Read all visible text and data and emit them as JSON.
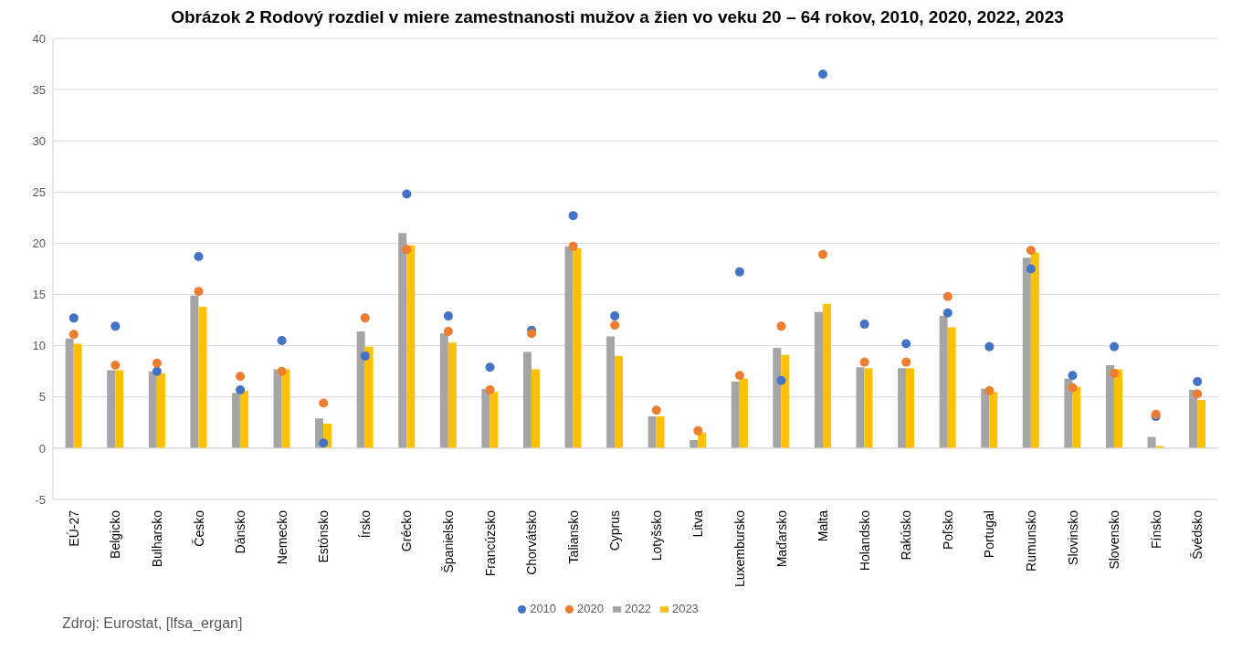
{
  "chart_data": {
    "type": "bar",
    "title": "Obrázok 2 Rodový rozdiel v miere zamestnanosti mužov a žien vo veku 20 – 64 rokov, 2010, 2020, 2022, 2023",
    "categories": [
      "EÚ-27",
      "Belgicko",
      "Bulharsko",
      "Česko",
      "Dánsko",
      "Nemecko",
      "Estónsko",
      "Írsko",
      "Grécko",
      "Španielsko",
      "Francúzsko",
      "Chorvátsko",
      "Taliansko",
      "Cyprus",
      "Lotyšsko",
      "Litva",
      "Luxembursko",
      "Maďarsko",
      "Malta",
      "Holandsko",
      "Rakúsko",
      "Poľsko",
      "Portugal",
      "Rumunsko",
      "Slovinsko",
      "Slovensko",
      "Fínsko",
      "Švédsko"
    ],
    "series": [
      {
        "name": "2022",
        "color": "#a5a5a5",
        "values": [
          10.7,
          7.6,
          7.5,
          14.9,
          5.4,
          7.7,
          2.9,
          11.4,
          21.0,
          11.2,
          5.8,
          9.4,
          19.7,
          10.9,
          3.1,
          0.8,
          6.5,
          9.8,
          13.3,
          7.9,
          7.8,
          12.9,
          5.8,
          18.6,
          6.8,
          8.1,
          1.1,
          5.7
        ]
      },
      {
        "name": "2023",
        "color": "#ffc000",
        "values": [
          10.2,
          7.6,
          7.3,
          13.8,
          5.6,
          7.7,
          2.4,
          9.9,
          19.8,
          10.3,
          5.5,
          7.7,
          19.5,
          9.0,
          3.1,
          1.5,
          6.8,
          9.1,
          14.1,
          7.8,
          7.8,
          11.8,
          5.5,
          19.1,
          6.0,
          7.7,
          0.2,
          4.7
        ]
      },
      {
        "name": "2010",
        "type": "scatter",
        "color": "#4472c4",
        "values": [
          12.7,
          11.9,
          7.5,
          18.7,
          5.7,
          10.5,
          0.5,
          9.0,
          24.8,
          12.9,
          7.9,
          11.5,
          22.7,
          12.9,
          null,
          null,
          17.2,
          6.6,
          36.5,
          12.1,
          10.2,
          13.2,
          9.9,
          17.5,
          7.1,
          9.9,
          3.1,
          6.5
        ]
      },
      {
        "name": "2020",
        "type": "scatter",
        "color": "#ed7d31",
        "values": [
          11.1,
          8.1,
          8.3,
          15.3,
          7.0,
          7.5,
          4.4,
          12.7,
          19.4,
          11.4,
          5.7,
          11.2,
          19.7,
          12.0,
          3.7,
          1.7,
          7.1,
          11.9,
          18.9,
          8.4,
          8.4,
          14.8,
          5.6,
          19.3,
          5.9,
          7.3,
          3.3,
          5.3
        ]
      }
    ],
    "ylim": [
      -5,
      40
    ],
    "yticks": [
      -5,
      0,
      5,
      10,
      15,
      20,
      25,
      30,
      35,
      40
    ],
    "grid": "y",
    "legend": "bottom",
    "marker": "circle",
    "annotations": [
      "Zdroj: Eurostat, [lfsa_ergan]"
    ]
  }
}
